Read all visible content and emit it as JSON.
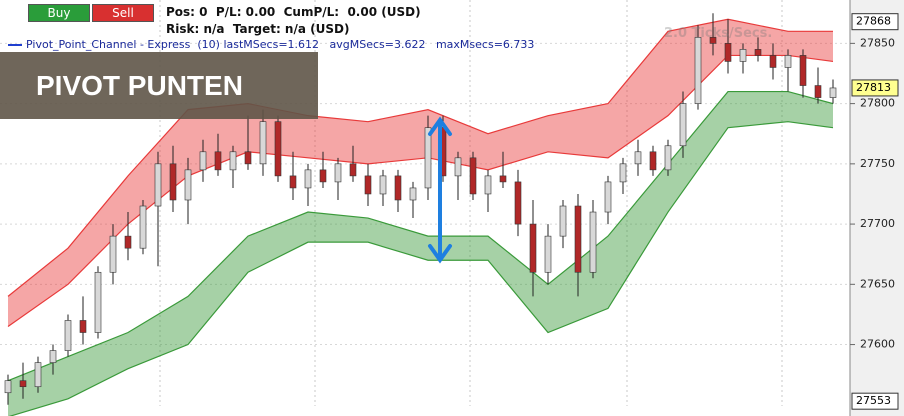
{
  "header": {
    "buy": "Buy",
    "sell": "Sell",
    "status": "Pos: 0  P/L: 0.00  CumP/L:  0.00 (USD)",
    "risk": "Risk: n/a  Target: n/a (USD)",
    "indicator": "Pivot_Point_Channel - Express  (10) lastMSecs=1.612   avgMSecs=3.622   maxMsecs=6.733",
    "watermark": "2.0 Ticks/Secs."
  },
  "overlay_title": "PIVOT PUNTEN",
  "chart_data": {
    "type": "candlestick",
    "open": [
      27560,
      27570,
      27565,
      27585,
      27595,
      27620,
      27610,
      27660,
      27690,
      27680,
      27715,
      27750,
      27720,
      27745,
      27760,
      27745,
      27760,
      27750,
      27785,
      27740,
      27730,
      27745,
      27735,
      27750,
      27740,
      27725,
      27740,
      27720,
      27730,
      27780,
      27740,
      27755,
      27725,
      27740,
      27735,
      27700,
      27660,
      27690,
      27715,
      27660,
      27710,
      27735,
      27750,
      27760,
      27745,
      27765,
      27800,
      27855,
      27850,
      27835,
      27845,
      27840,
      27830,
      27840,
      27815,
      27805
    ],
    "high": [
      27575,
      27585,
      27590,
      27600,
      27625,
      27640,
      27665,
      27700,
      27710,
      27720,
      27760,
      27765,
      27755,
      27770,
      27775,
      27765,
      27790,
      27795,
      27790,
      27760,
      27750,
      27760,
      27755,
      27765,
      27750,
      27745,
      27745,
      27735,
      27790,
      27790,
      27760,
      27760,
      27745,
      27760,
      27745,
      27720,
      27700,
      27720,
      27725,
      27720,
      27740,
      27755,
      27770,
      27765,
      27770,
      27810,
      27865,
      27875,
      27870,
      27850,
      27855,
      27850,
      27845,
      27845,
      27830,
      27820
    ],
    "low": [
      27550,
      27555,
      27560,
      27575,
      27590,
      27600,
      27605,
      27650,
      27670,
      27675,
      27665,
      27710,
      27700,
      27735,
      27740,
      27730,
      27745,
      27740,
      27735,
      27720,
      27715,
      27730,
      27720,
      27735,
      27715,
      27715,
      27710,
      27705,
      27720,
      27735,
      27720,
      27720,
      27710,
      27730,
      27690,
      27640,
      27650,
      27680,
      27640,
      27655,
      27700,
      27725,
      27740,
      27740,
      27740,
      27755,
      27795,
      27840,
      27825,
      27825,
      27835,
      27820,
      27810,
      27805,
      27800,
      27800
    ],
    "close": [
      27570,
      27565,
      27585,
      27595,
      27620,
      27610,
      27660,
      27690,
      27680,
      27715,
      27750,
      27720,
      27745,
      27760,
      27745,
      27760,
      27750,
      27785,
      27740,
      27730,
      27745,
      27735,
      27750,
      27740,
      27725,
      27740,
      27720,
      27730,
      27780,
      27740,
      27755,
      27725,
      27740,
      27735,
      27700,
      27660,
      27690,
      27715,
      27660,
      27710,
      27735,
      27750,
      27760,
      27745,
      27765,
      27800,
      27855,
      27850,
      27835,
      27845,
      27840,
      27830,
      27840,
      27815,
      27805,
      27813
    ],
    "up_color": "#d8d8d8",
    "down_color": "#b02828",
    "bands": [
      {
        "x": [
          0,
          4,
          8,
          12,
          16,
          20,
          24,
          28,
          32,
          36,
          40,
          44,
          48,
          52,
          55
        ],
        "upper": [
          27640,
          27680,
          27740,
          27795,
          27800,
          27790,
          27785,
          27795,
          27775,
          27790,
          27800,
          27860,
          27870,
          27860,
          27860
        ],
        "lower": [
          27615,
          27650,
          27700,
          27740,
          27760,
          27755,
          27750,
          27755,
          27745,
          27760,
          27755,
          27790,
          27840,
          27840,
          27835
        ],
        "color": "#e83a3a"
      },
      {
        "x": [
          0,
          4,
          8,
          12,
          16,
          20,
          24,
          28,
          32,
          36,
          40,
          44,
          48,
          52,
          55
        ],
        "upper": [
          27570,
          27590,
          27610,
          27640,
          27690,
          27710,
          27705,
          27690,
          27690,
          27650,
          27690,
          27750,
          27810,
          27810,
          27800
        ],
        "lower": [
          27540,
          27555,
          27580,
          27600,
          27660,
          27685,
          27685,
          27670,
          27670,
          27610,
          27630,
          27710,
          27780,
          27785,
          27780
        ],
        "color": "#3a9a3a"
      }
    ],
    "ylim": [
      27549,
      27886
    ],
    "yticks": [
      27600,
      27650,
      27700,
      27750,
      27800,
      27850
    ],
    "grid": true,
    "price_labels": [
      27868,
      27813,
      27553
    ],
    "price_label_colors": [
      "#ffffff",
      "#ffff90",
      "#ffffff"
    ]
  }
}
